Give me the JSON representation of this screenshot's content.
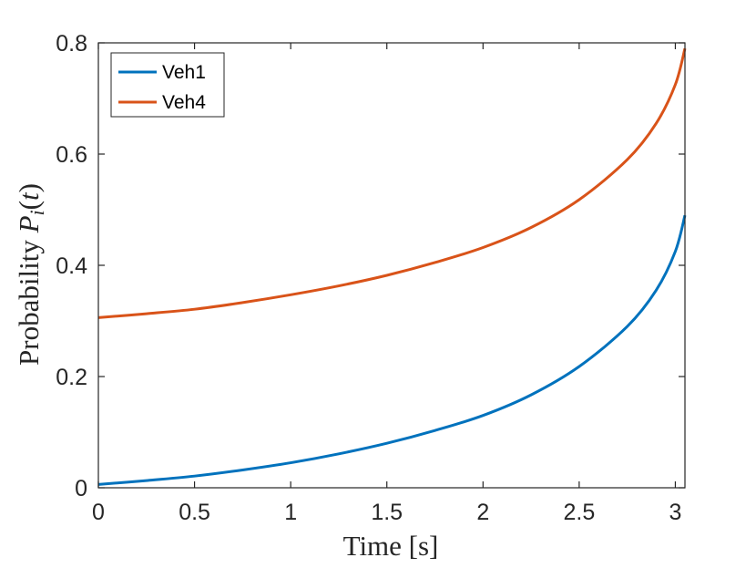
{
  "chart_data": {
    "type": "line",
    "title": "",
    "xlabel": "Time [s]",
    "ylabel": {
      "prefix": "Probability ",
      "var": "P",
      "sub": "i",
      "suffix": "(",
      "arg": "t",
      "close": ")"
    },
    "xlim": [
      0,
      3.05
    ],
    "ylim": [
      0,
      0.8
    ],
    "xticks": [
      0,
      0.5,
      1,
      1.5,
      2,
      2.5,
      3
    ],
    "xtick_labels": [
      "0",
      "0.5",
      "1",
      "1.5",
      "2",
      "2.5",
      "3"
    ],
    "yticks": [
      0,
      0.2,
      0.4,
      0.6,
      0.8
    ],
    "ytick_labels": [
      "0",
      "0.2",
      "0.4",
      "0.6",
      "0.8"
    ],
    "grid": false,
    "legend_position": "top-left",
    "x": [
      0,
      0.25,
      0.5,
      0.75,
      1.0,
      1.25,
      1.5,
      1.75,
      2.0,
      2.25,
      2.5,
      2.75,
      2.9,
      3.0,
      3.05
    ],
    "series": [
      {
        "name": "Veh1",
        "color": "#0072BD",
        "values": [
          0.006,
          0.013,
          0.021,
          0.032,
          0.045,
          0.061,
          0.08,
          0.103,
          0.13,
          0.167,
          0.218,
          0.29,
          0.355,
          0.425,
          0.49
        ]
      },
      {
        "name": "Veh4",
        "color": "#D95319",
        "values": [
          0.306,
          0.313,
          0.321,
          0.333,
          0.347,
          0.363,
          0.382,
          0.405,
          0.432,
          0.468,
          0.518,
          0.59,
          0.655,
          0.725,
          0.79
        ]
      }
    ]
  }
}
